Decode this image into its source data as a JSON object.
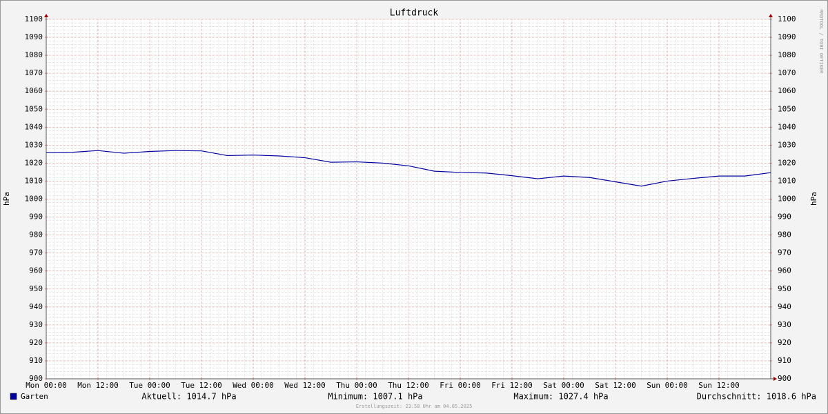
{
  "chart_data": {
    "type": "line",
    "title": "Luftdruck",
    "ylabel": "hPa",
    "y2label": "hPa",
    "xlim": [
      0,
      168
    ],
    "xticks": [
      {
        "value": 0,
        "label": "Mon 00:00"
      },
      {
        "value": 12,
        "label": "Mon 12:00"
      },
      {
        "value": 24,
        "label": "Tue 00:00"
      },
      {
        "value": 36,
        "label": "Tue 12:00"
      },
      {
        "value": 48,
        "label": "Wed 00:00"
      },
      {
        "value": 60,
        "label": "Wed 12:00"
      },
      {
        "value": 72,
        "label": "Thu 00:00"
      },
      {
        "value": 84,
        "label": "Thu 12:00"
      },
      {
        "value": 96,
        "label": "Fri 00:00"
      },
      {
        "value": 108,
        "label": "Fri 12:00"
      },
      {
        "value": 120,
        "label": "Sat 00:00"
      },
      {
        "value": 132,
        "label": "Sat 12:00"
      },
      {
        "value": 144,
        "label": "Sun 00:00"
      },
      {
        "value": 156,
        "label": "Sun 12:00"
      }
    ],
    "ylim": [
      900,
      1100
    ],
    "yticks": [
      900,
      910,
      920,
      930,
      940,
      950,
      960,
      970,
      980,
      990,
      1000,
      1010,
      1020,
      1030,
      1040,
      1050,
      1060,
      1070,
      1080,
      1090,
      1100
    ],
    "grid": true,
    "x": [
      0,
      6,
      12,
      18,
      24,
      30,
      36,
      42,
      48,
      54,
      60,
      66,
      72,
      78,
      84,
      90,
      96,
      102,
      108,
      114,
      120,
      126,
      132,
      138,
      144,
      150,
      156,
      162,
      168
    ],
    "series": [
      {
        "name": "Garten",
        "color": "#0000a0",
        "values": [
          1025.8,
          1026,
          1027,
          1025.5,
          1026.5,
          1027,
          1026.8,
          1024.2,
          1024.5,
          1024,
          1023,
          1020.5,
          1020.7,
          1020,
          1018.5,
          1015.5,
          1014.8,
          1014.5,
          1013,
          1011.3,
          1012.8,
          1012,
          1009.6,
          1007.2,
          1010,
          1011.5,
          1012.8,
          1012.8,
          1014.7
        ]
      }
    ],
    "stats": [
      "Aktuell: 1014.7 hPa",
      "Minimum: 1007.1 hPa",
      "Maximum: 1027.4 hPa",
      "Durchschnitt: 1018.6 hPa"
    ],
    "footer": "Erstellungszeit: 23:58 Uhr am 04.05.2025",
    "watermark": "RRDTOOL / TOBI OETIKER"
  }
}
